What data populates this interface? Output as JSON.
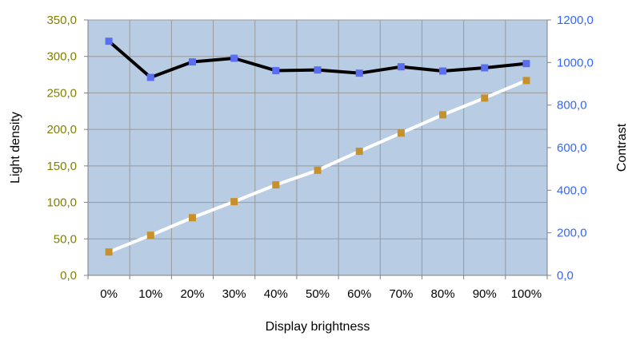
{
  "chart_data": {
    "type": "line",
    "xlabel": "Display brightness",
    "ylabel_left": "Light density",
    "ylabel_right": "Contrast",
    "categories": [
      "0%",
      "10%",
      "20%",
      "30%",
      "40%",
      "50%",
      "60%",
      "70%",
      "80%",
      "90%",
      "100%"
    ],
    "ylim_left": [
      0,
      350
    ],
    "ylim_right": [
      0,
      1200
    ],
    "yticks_left": [
      "0,0",
      "50,0",
      "100,0",
      "150,0",
      "200,0",
      "250,0",
      "300,0",
      "350,0"
    ],
    "yticks_right": [
      "0,0",
      "200,0",
      "400,0",
      "600,0",
      "800,0",
      "1000,0",
      "1200,0"
    ],
    "grid": true,
    "series": [
      {
        "axis": "right",
        "values": [
          1100,
          930,
          1003,
          1020,
          962,
          965,
          950,
          980,
          960,
          975,
          995
        ],
        "line_color": "#000000",
        "marker_color": "#5a6ff0"
      },
      {
        "axis": "left",
        "values": [
          32,
          55,
          79,
          101,
          124,
          144,
          170,
          195,
          220,
          243,
          267
        ],
        "line_color": "#ffffff",
        "marker_color": "#c8902a"
      }
    ],
    "colors": {
      "plot_bg": "#b8cce4",
      "grid": "#9a9a9a",
      "left_tick": "#808000",
      "right_tick": "#3366ff"
    }
  }
}
